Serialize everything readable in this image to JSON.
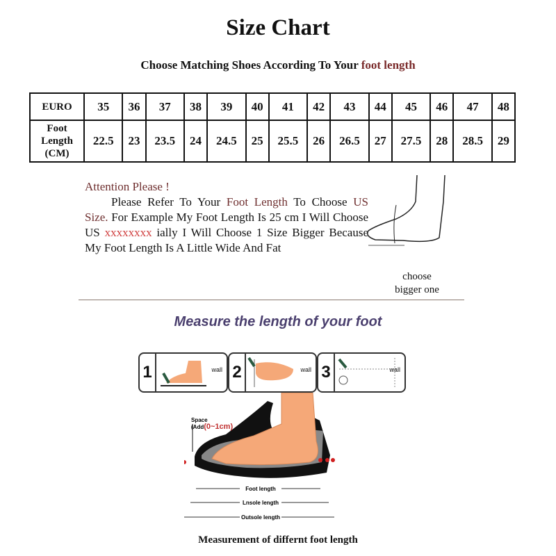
{
  "title": "Size Chart",
  "subtitle": {
    "prefix": "Choose Matching Shoes According To Your ",
    "highlight": "foot length"
  },
  "table": {
    "row1_header": "EURO",
    "row2_header": "Foot Length (CM)",
    "euro": [
      "35",
      "36",
      "37",
      "38",
      "39",
      "40",
      "41",
      "42",
      "43",
      "44",
      "45",
      "46",
      "47",
      "48"
    ],
    "foot_length_cm": [
      "22.5",
      "23",
      "23.5",
      "24",
      "24.5",
      "25",
      "25.5",
      "26",
      "26.5",
      "27",
      "27.5",
      "28",
      "28.5",
      "29"
    ]
  },
  "note": {
    "heading": "Attention Please !",
    "p1": "Please Refer To Your ",
    "p1_hl": "Foot Length",
    "p2": " To Choose ",
    "p2_hl": "US Size.",
    "p3": " For Example My Foot Length Is 25 cm I Will Choose US ",
    "p3_red": "xxxxxxxx",
    "p4": " ially I Will Choose 1 Size Bigger Because My Foot Length Is A Little Wide And Fat"
  },
  "choose_label": "choose bigger one",
  "measure_heading": "Measure the length of your foot",
  "steps": [
    {
      "num": "1",
      "wall": "wall"
    },
    {
      "num": "2",
      "wall": "wall"
    },
    {
      "num": "3",
      "wall": "wall"
    }
  ],
  "diagram": {
    "space": "Space",
    "add": "(Add",
    "add_range": "(0~1cm)",
    "foot_length": "Foot length",
    "insole_length": "Lnsole length",
    "outsole_length": "Outsole length"
  },
  "caption": "Measurement of differnt foot length",
  "colors": {
    "accent_brown": "#6e2e2e",
    "accent_red": "#d04040",
    "heading_purple": "#4a3f6e",
    "skin": "#f5a878"
  }
}
